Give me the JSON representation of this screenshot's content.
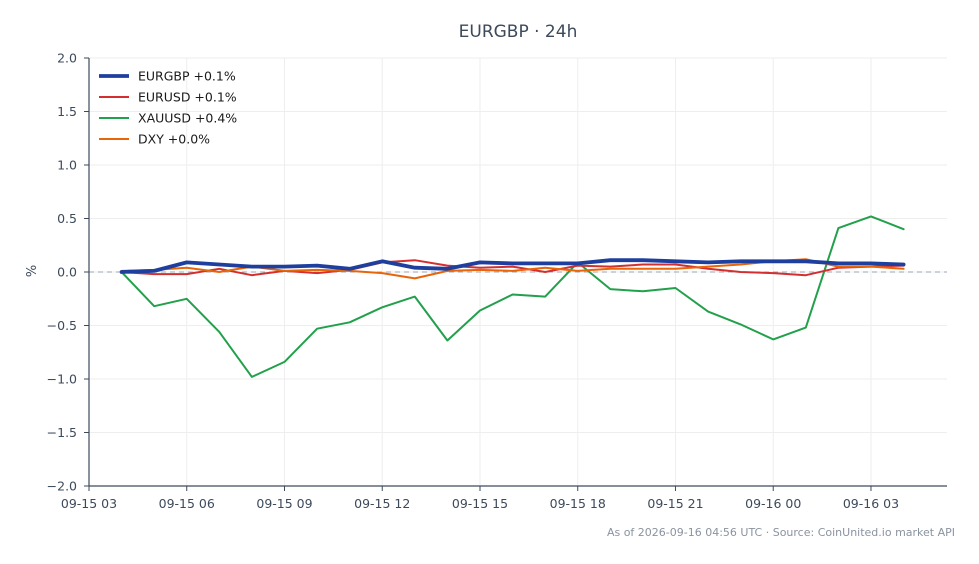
{
  "chart_data": {
    "type": "line",
    "title": "EURGBP · 24h",
    "xlabel": "",
    "ylabel": "%",
    "ylim": [
      -2.0,
      2.0
    ],
    "yticks": [
      -2.0,
      -1.5,
      -1.0,
      -0.5,
      0.0,
      0.5,
      1.0,
      1.5,
      2.0
    ],
    "ytick_labels": [
      "−2.0",
      "−1.5",
      "−1.0",
      "−0.5",
      "0.0",
      "0.5",
      "1.0",
      "1.5",
      "2.0"
    ],
    "xlim": [
      "2026-09-15 03:00",
      "2026-09-16 05:20"
    ],
    "xticks": [
      "2026-09-15 03:00",
      "2026-09-15 06:00",
      "2026-09-15 09:00",
      "2026-09-15 12:00",
      "2026-09-15 15:00",
      "2026-09-15 18:00",
      "2026-09-15 21:00",
      "2026-09-16 00:00",
      "2026-09-16 03:00"
    ],
    "xtick_labels": [
      "09-15 03",
      "09-15 06",
      "09-15 09",
      "09-15 12",
      "09-15 15",
      "09-15 18",
      "09-15 21",
      "09-16 00",
      "09-16 03"
    ],
    "x": [
      "2026-09-15 04:00",
      "2026-09-15 05:00",
      "2026-09-15 06:00",
      "2026-09-15 07:00",
      "2026-09-15 08:00",
      "2026-09-15 09:00",
      "2026-09-15 10:00",
      "2026-09-15 11:00",
      "2026-09-15 12:00",
      "2026-09-15 13:00",
      "2026-09-15 14:00",
      "2026-09-15 15:00",
      "2026-09-15 16:00",
      "2026-09-15 17:00",
      "2026-09-15 18:00",
      "2026-09-15 19:00",
      "2026-09-15 20:00",
      "2026-09-15 21:00",
      "2026-09-15 22:00",
      "2026-09-15 23:00",
      "2026-09-16 00:00",
      "2026-09-16 01:00",
      "2026-09-16 02:00",
      "2026-09-16 03:00",
      "2026-09-16 04:00"
    ],
    "grid": true,
    "zero_line": true,
    "legend_position": "top-left",
    "series": [
      {
        "name": "EURGBP +0.1%",
        "color": "#1f3f9e",
        "values": [
          0.0,
          0.01,
          0.09,
          0.07,
          0.05,
          0.05,
          0.06,
          0.03,
          0.1,
          0.04,
          0.03,
          0.09,
          0.08,
          0.08,
          0.08,
          0.11,
          0.11,
          0.1,
          0.09,
          0.1,
          0.1,
          0.1,
          0.08,
          0.08,
          0.07
        ]
      },
      {
        "name": "EURUSD +0.1%",
        "color": "#d32f2f",
        "values": [
          0.0,
          -0.02,
          -0.02,
          0.03,
          -0.03,
          0.01,
          -0.01,
          0.02,
          0.09,
          0.11,
          0.06,
          0.04,
          0.05,
          0.0,
          0.06,
          0.05,
          0.07,
          0.07,
          0.03,
          0.0,
          -0.01,
          -0.03,
          0.04,
          0.05,
          0.06
        ]
      },
      {
        "name": "XAUUSD +0.4%",
        "color": "#22a04b",
        "values": [
          0.0,
          -0.32,
          -0.25,
          -0.56,
          -0.98,
          -0.84,
          -0.53,
          -0.47,
          -0.33,
          -0.23,
          -0.64,
          -0.36,
          -0.21,
          -0.23,
          0.09,
          -0.16,
          -0.18,
          -0.15,
          -0.37,
          -0.49,
          -0.63,
          -0.52,
          0.41,
          0.52,
          0.4
        ]
      },
      {
        "name": "DXY +0.0%",
        "color": "#e8650a",
        "values": [
          0.01,
          0.02,
          0.04,
          0.0,
          0.05,
          0.01,
          0.02,
          0.01,
          -0.01,
          -0.06,
          0.01,
          0.02,
          0.01,
          0.04,
          0.01,
          0.03,
          0.03,
          0.03,
          0.05,
          0.07,
          0.1,
          0.12,
          0.05,
          0.05,
          0.03
        ]
      }
    ]
  },
  "footer": "As of 2026-09-16 04:56 UTC · Source: CoinUnited.io market API",
  "colors": {
    "grid": "#eeeeee",
    "axis": "#3d4a5c",
    "zero_line": "#9aa3b5"
  }
}
